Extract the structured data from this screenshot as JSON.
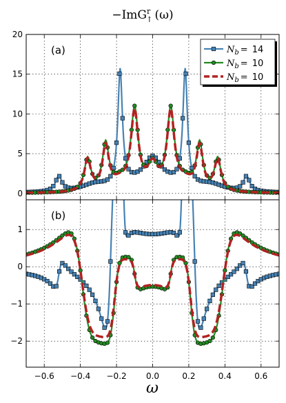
{
  "chart_data": {
    "type": "line",
    "title": "−ImG^r_↑(ω)",
    "title_main": "−ImG",
    "title_sup": "r",
    "title_sub": "↑",
    "title_arg": "(ω)",
    "xlabel": "ω",
    "xlim": [
      -0.7,
      0.7
    ],
    "xticks": [
      -0.6,
      -0.4,
      -0.2,
      0.0,
      0.2,
      0.4,
      0.6
    ],
    "xtick_labels": [
      "−0.6",
      "−0.4",
      "−0.2",
      "0.0",
      "0.2",
      "0.4",
      "0.6"
    ],
    "grid": true,
    "legend_placement": "top-right",
    "legend": [
      {
        "label": "N_b =",
        "base": "N",
        "sub": "b",
        "eq": "=",
        "value": "14",
        "color": "#4682b4",
        "style": "solid-square-markers"
      },
      {
        "label": "N_b =",
        "base": "N",
        "sub": "b",
        "eq": "=",
        "value": "10",
        "color": "#228b22",
        "style": "solid-circle-markers"
      },
      {
        "label": "N_b =",
        "base": "N",
        "sub": "b",
        "eq": "=",
        "value": "10",
        "color": "#b22222",
        "style": "dashed"
      }
    ],
    "panels": [
      {
        "label": "(a)",
        "ylim": [
          -0.8,
          20
        ],
        "yticks": [
          0,
          5,
          10,
          15,
          20
        ],
        "ytick_labels": [
          "0",
          "5",
          "10",
          "15",
          "20"
        ],
        "series": [
          {
            "color": "#4682b4",
            "components": [
              {
                "type": "lorentz",
                "center": 0.18,
                "width": 0.015,
                "amplitude": 14.5
              },
              {
                "type": "lorentz",
                "center": -0.18,
                "width": 0.015,
                "amplitude": 14.5
              },
              {
                "type": "lorentz",
                "center": 0.0,
                "width": 0.06,
                "amplitude": 3.6
              },
              {
                "type": "lorentz",
                "center": 0.52,
                "width": 0.022,
                "amplitude": 1.9
              },
              {
                "type": "lorentz",
                "center": -0.52,
                "width": 0.022,
                "amplitude": 1.9
              },
              {
                "type": "lorentz",
                "center": 0.1,
                "width": 0.1,
                "amplitude": 0.8
              },
              {
                "type": "lorentz",
                "center": -0.1,
                "width": 0.1,
                "amplitude": 0.8
              },
              {
                "type": "lorentz",
                "center": 0.32,
                "width": 0.09,
                "amplitude": 0.9
              },
              {
                "type": "lorentz",
                "center": -0.32,
                "width": 0.09,
                "amplitude": 0.9
              }
            ],
            "marker": "square"
          },
          {
            "color": "#228b22",
            "components": [
              {
                "type": "lorentz",
                "center": 0.1,
                "width": 0.025,
                "amplitude": 10.0
              },
              {
                "type": "lorentz",
                "center": -0.1,
                "width": 0.025,
                "amplitude": 10.0
              },
              {
                "type": "lorentz",
                "center": 0.26,
                "width": 0.022,
                "amplitude": 5.8
              },
              {
                "type": "lorentz",
                "center": -0.26,
                "width": 0.022,
                "amplitude": 5.8
              },
              {
                "type": "lorentz",
                "center": 0.36,
                "width": 0.022,
                "amplitude": 4.1
              },
              {
                "type": "lorentz",
                "center": -0.36,
                "width": 0.022,
                "amplitude": 4.1
              },
              {
                "type": "lorentz",
                "center": 0.0,
                "width": 0.035,
                "amplitude": 3.0
              },
              {
                "type": "lorentz",
                "center": 0.18,
                "width": 0.05,
                "amplitude": 1.2
              },
              {
                "type": "lorentz",
                "center": -0.18,
                "width": 0.05,
                "amplitude": 1.2
              }
            ],
            "marker": "circle"
          },
          {
            "color": "#b22222",
            "components": [
              {
                "type": "lorentz",
                "center": 0.1,
                "width": 0.025,
                "amplitude": 9.7
              },
              {
                "type": "lorentz",
                "center": -0.1,
                "width": 0.025,
                "amplitude": 9.7
              },
              {
                "type": "lorentz",
                "center": 0.26,
                "width": 0.022,
                "amplitude": 5.5
              },
              {
                "type": "lorentz",
                "center": -0.26,
                "width": 0.022,
                "amplitude": 5.5
              },
              {
                "type": "lorentz",
                "center": 0.36,
                "width": 0.022,
                "amplitude": 4.0
              },
              {
                "type": "lorentz",
                "center": -0.36,
                "width": 0.022,
                "amplitude": 4.0
              },
              {
                "type": "lorentz",
                "center": 0.0,
                "width": 0.035,
                "amplitude": 3.0
              },
              {
                "type": "lorentz",
                "center": 0.18,
                "width": 0.05,
                "amplitude": 1.1
              },
              {
                "type": "lorentz",
                "center": -0.18,
                "width": 0.05,
                "amplitude": 1.1
              }
            ],
            "marker": "none"
          }
        ]
      },
      {
        "label": "(b)",
        "ylim": [
          -2.7,
          1.8
        ],
        "yticks": [
          -2,
          -1,
          0,
          1
        ],
        "ytick_labels": [
          "−2",
          "−1",
          "0",
          "1"
        ],
        "series": [
          {
            "color": "#4682b4",
            "components": [
              {
                "type": "dispersive",
                "center": 0.23,
                "width": 0.03,
                "amplitude": -2.2
              },
              {
                "type": "dispersive",
                "center": -0.23,
                "width": 0.03,
                "amplitude": 2.2
              },
              {
                "type": "dispersive",
                "center": 0.16,
                "width": 0.014,
                "amplitude": 0.9
              },
              {
                "type": "dispersive",
                "center": -0.16,
                "width": 0.014,
                "amplitude": -0.9
              },
              {
                "type": "dispersive",
                "center": 0.52,
                "width": 0.022,
                "amplitude": -0.35
              },
              {
                "type": "dispersive",
                "center": -0.52,
                "width": 0.022,
                "amplitude": 0.35
              }
            ],
            "marker": "square"
          },
          {
            "color": "#228b22",
            "components": [
              {
                "type": "dispersive",
                "center": 0.39,
                "width": 0.07,
                "amplitude": 1.3
              },
              {
                "type": "dispersive",
                "center": -0.39,
                "width": 0.07,
                "amplitude": -1.3
              },
              {
                "type": "dispersive",
                "center": 0.21,
                "width": 0.04,
                "amplitude": -0.95
              },
              {
                "type": "dispersive",
                "center": -0.21,
                "width": 0.04,
                "amplitude": 0.95
              },
              {
                "type": "dispersive",
                "center": 0.1,
                "width": 0.025,
                "amplitude": 0.35
              },
              {
                "type": "dispersive",
                "center": -0.1,
                "width": 0.025,
                "amplitude": -0.35
              }
            ],
            "marker": "circle"
          },
          {
            "color": "#b22222",
            "components": [
              {
                "type": "dispersive",
                "center": 0.39,
                "width": 0.07,
                "amplitude": 1.2
              },
              {
                "type": "dispersive",
                "center": -0.39,
                "width": 0.07,
                "amplitude": -1.2
              },
              {
                "type": "dispersive",
                "center": 0.21,
                "width": 0.04,
                "amplitude": -0.85
              },
              {
                "type": "dispersive",
                "center": -0.21,
                "width": 0.04,
                "amplitude": 0.85
              },
              {
                "type": "dispersive",
                "center": 0.1,
                "width": 0.025,
                "amplitude": 0.3
              },
              {
                "type": "dispersive",
                "center": -0.1,
                "width": 0.025,
                "amplitude": -0.3
              }
            ],
            "marker": "none"
          }
        ]
      }
    ]
  }
}
